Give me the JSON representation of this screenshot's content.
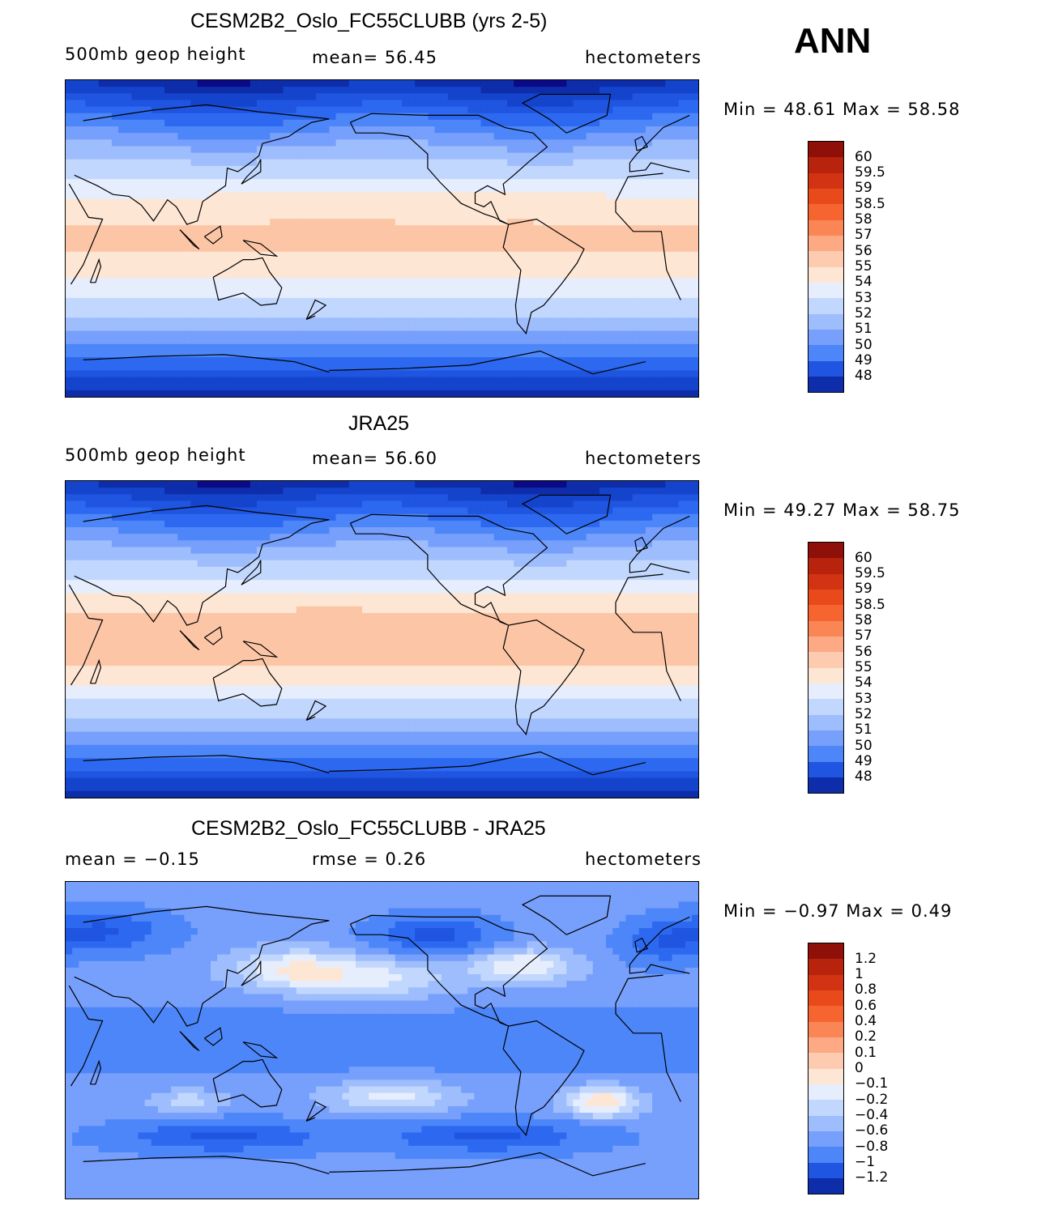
{
  "season": "ANN",
  "colors": {
    "levels": [
      "#0a0a86",
      "#0e2daa",
      "#1444cc",
      "#1f55e0",
      "#2d69f0",
      "#4c86f8",
      "#779ffc",
      "#9ebdfd",
      "#c2d7fe",
      "#e6eefe",
      "#fde6d4",
      "#fdcbb0",
      "#fca984",
      "#fa8656",
      "#f6652f",
      "#e94a1c",
      "#d23312",
      "#b7230c",
      "#8e1008"
    ],
    "coast": "#000000"
  },
  "panels": [
    {
      "title": "CESM2B2_Oslo_FC55CLUBB (yrs 2-5)",
      "left_label": "500mb  geop  height",
      "center_label": "mean=   56.45",
      "units": "hectometers",
      "min_max": "Min  =   48.61  Max  =   58.58",
      "field": {
        "kind": "model"
      },
      "colorbar_labels": [
        "60",
        "59.5",
        "59",
        "58.5",
        "58",
        "57",
        "56",
        "55",
        "54",
        "53",
        "52",
        "51",
        "50",
        "49",
        "48"
      ]
    },
    {
      "title": "JRA25",
      "left_label": "500mb  geop  height",
      "center_label": "mean=   56.60",
      "units": "hectometers",
      "min_max": "Min  =   49.27  Max  =   58.75",
      "field": {
        "kind": "obs"
      },
      "colorbar_labels": [
        "60",
        "59.5",
        "59",
        "58.5",
        "58",
        "57",
        "56",
        "55",
        "54",
        "53",
        "52",
        "51",
        "50",
        "49",
        "48"
      ]
    },
    {
      "title": "CESM2B2_Oslo_FC55CLUBB - JRA25",
      "left_label": "mean  =   −0.15",
      "center_label": "rmse  =     0.26",
      "units": "hectometers",
      "min_max": "Min  =  −0.97  Max  =     0.49",
      "field": {
        "kind": "diff"
      },
      "colorbar_labels": [
        "1.2",
        "1",
        "0.8",
        "0.6",
        "0.4",
        "0.2",
        "0.1",
        "0",
        "−0.1",
        "−0.2",
        "−0.4",
        "−0.6",
        "−0.8",
        "−1",
        "−1.2"
      ]
    }
  ]
}
